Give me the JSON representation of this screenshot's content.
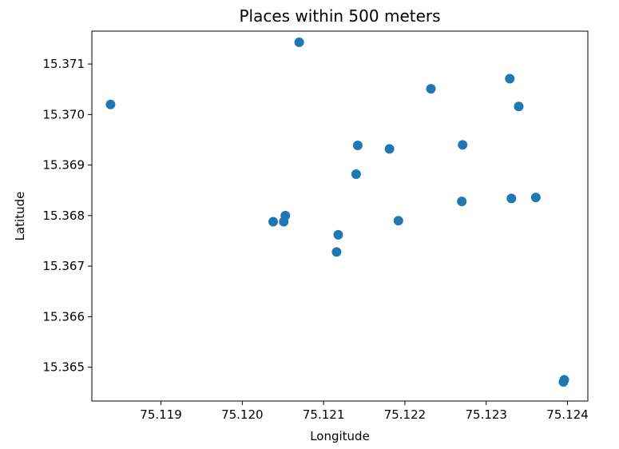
{
  "chart_data": {
    "type": "scatter",
    "title": "Places within 500 meters",
    "xlabel": "Longitude",
    "ylabel": "Latitude",
    "xlim": [
      75.11815,
      75.12425
    ],
    "ylim": [
      15.36433,
      15.37165
    ],
    "xticks": [
      "75.119",
      "75.120",
      "75.121",
      "75.122",
      "75.123",
      "75.124"
    ],
    "yticks": [
      "15.365",
      "15.366",
      "15.367",
      "15.368",
      "15.369",
      "15.370",
      "15.371"
    ],
    "grid": false,
    "color": "#1f77b4",
    "series": [
      {
        "points": [
          {
            "x": 75.11838,
            "y": 15.3702
          },
          {
            "x": 75.1207,
            "y": 15.37143
          },
          {
            "x": 75.12038,
            "y": 15.36788
          },
          {
            "x": 75.12051,
            "y": 15.36788
          },
          {
            "x": 75.12053,
            "y": 15.368
          },
          {
            "x": 75.12116,
            "y": 15.36728
          },
          {
            "x": 75.12118,
            "y": 15.36762
          },
          {
            "x": 75.1214,
            "y": 15.36882
          },
          {
            "x": 75.12142,
            "y": 15.36939
          },
          {
            "x": 75.12181,
            "y": 15.36932
          },
          {
            "x": 75.12192,
            "y": 15.3679
          },
          {
            "x": 75.12232,
            "y": 15.37051
          },
          {
            "x": 75.1227,
            "y": 15.36828
          },
          {
            "x": 75.12271,
            "y": 15.3694
          },
          {
            "x": 75.12329,
            "y": 15.37071
          },
          {
            "x": 75.12331,
            "y": 15.36834
          },
          {
            "x": 75.1234,
            "y": 15.37016
          },
          {
            "x": 75.12361,
            "y": 15.36836
          },
          {
            "x": 75.12395,
            "y": 15.36471
          },
          {
            "x": 75.12396,
            "y": 15.36475
          }
        ]
      }
    ]
  }
}
